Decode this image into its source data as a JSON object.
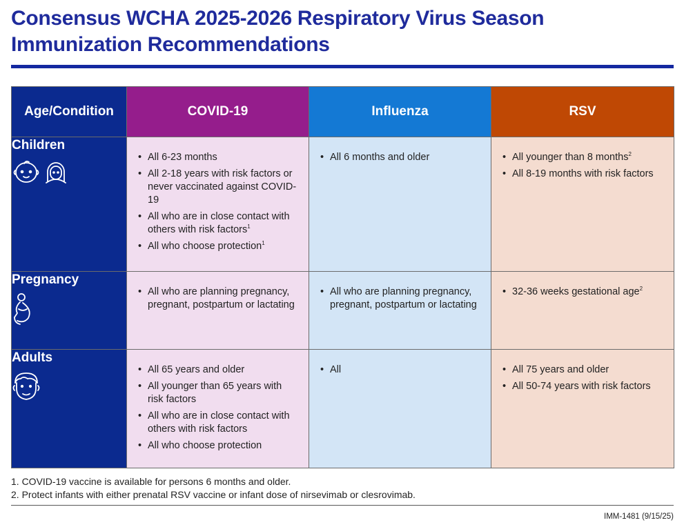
{
  "title": {
    "line1": "Consensus WCHA 2025-2026 Respiratory Virus Season",
    "line2": "Immunization Recommendations"
  },
  "colors": {
    "title": "#1f2b9c",
    "age_header": "#0b2a8f",
    "covid_header": "#951d8c",
    "flu_header": "#1479d4",
    "rsv_header": "#bf4804",
    "covid_cell": "#f1ddef",
    "flu_cell": "#d3e5f6",
    "rsv_cell": "#f4dcd0"
  },
  "table": {
    "headers": [
      "Age/Condition",
      "COVID-19",
      "Influenza",
      "RSV"
    ],
    "rows": [
      {
        "label": "Children",
        "icons": [
          "baby-face-icon",
          "child-girl-icon"
        ],
        "covid": [
          {
            "text": "All 6-23 months",
            "sup": ""
          },
          {
            "text": "All 2-18 years with risk factors or never vaccinated against COVID-19",
            "sup": ""
          },
          {
            "text": "All who are in close contact with others with risk factors",
            "sup": "1"
          },
          {
            "text": "All who choose protection",
            "sup": "1"
          }
        ],
        "flu": [
          {
            "text": "All 6 months and older",
            "sup": ""
          }
        ],
        "rsv": [
          {
            "text": "All younger than 8 months",
            "sup": "2"
          },
          {
            "text": "All 8-19 months with risk factors",
            "sup": ""
          }
        ]
      },
      {
        "label": "Pregnancy",
        "icons": [
          "pregnant-person-icon"
        ],
        "covid": [
          {
            "text": "All who are planning pregnancy, pregnant, postpartum or lactating",
            "sup": ""
          }
        ],
        "flu": [
          {
            "text": "All who are planning pregnancy, pregnant, postpartum or lactating",
            "sup": ""
          }
        ],
        "rsv": [
          {
            "text": "32-36 weeks gestational age",
            "sup": "2"
          }
        ]
      },
      {
        "label": "Adults",
        "icons": [
          "adult-face-icon"
        ],
        "covid": [
          {
            "text": "All 65 years and older",
            "sup": ""
          },
          {
            "text": "All younger than 65 years with risk factors",
            "sup": ""
          },
          {
            "text": "All who are in close contact with others with risk factors",
            "sup": ""
          },
          {
            "text": "All who choose protection",
            "sup": ""
          }
        ],
        "flu": [
          {
            "text": "All",
            "sup": ""
          }
        ],
        "rsv": [
          {
            "text": "All 75 years and older",
            "sup": ""
          },
          {
            "text": "All 50-74 years with risk factors",
            "sup": ""
          }
        ]
      }
    ]
  },
  "footnotes": [
    "1. COVID-19 vaccine is available for persons 6 months and older.",
    "2. Protect infants with either prenatal RSV vaccine or infant dose of nirsevimab or clesrovimab."
  ],
  "document_code": "IMM-1481 (9/15/25)"
}
